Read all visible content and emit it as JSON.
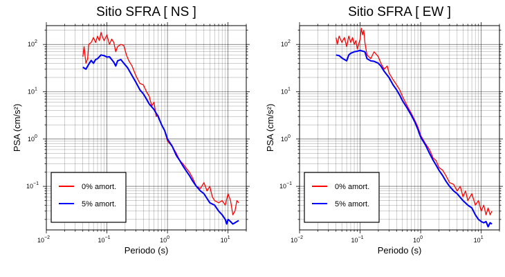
{
  "colors": {
    "undamped": "#ff0000",
    "damped": "#0000ff",
    "grid": "#000000",
    "frame": "#000000"
  },
  "chart_data": [
    {
      "type": "line",
      "title": "Sitio SFRA [ NS ]",
      "xlabel": "Periodo (s)",
      "ylabel": "PSA (cm/s²)",
      "xscale": "log",
      "yscale": "log",
      "xlim": [
        0.01,
        20
      ],
      "ylim": [
        0.012,
        250
      ],
      "grid": true,
      "legend_position": "bottom-left",
      "x_ticks": [
        {
          "value": 0.01,
          "base": "10",
          "exp": "−2"
        },
        {
          "value": 0.1,
          "base": "10",
          "exp": "−1"
        },
        {
          "value": 1,
          "base": "10",
          "exp": "0"
        },
        {
          "value": 10,
          "base": "10",
          "exp": "1"
        }
      ],
      "y_ticks": [
        {
          "value": 0.1,
          "base": "10",
          "exp": "−1"
        },
        {
          "value": 1,
          "base": "10",
          "exp": "0"
        },
        {
          "value": 10,
          "base": "10",
          "exp": "1"
        },
        {
          "value": 100,
          "base": "10",
          "exp": "2"
        }
      ],
      "series": [
        {
          "name": "0% amort.",
          "color": "#ff0000",
          "points": [
            [
              0.04,
              55
            ],
            [
              0.042,
              90
            ],
            [
              0.045,
              40
            ],
            [
              0.048,
              50
            ],
            [
              0.05,
              100
            ],
            [
              0.055,
              110
            ],
            [
              0.06,
              140
            ],
            [
              0.065,
              110
            ],
            [
              0.07,
              150
            ],
            [
              0.075,
              120
            ],
            [
              0.08,
              180
            ],
            [
              0.085,
              140
            ],
            [
              0.09,
              120
            ],
            [
              0.1,
              160
            ],
            [
              0.11,
              100
            ],
            [
              0.12,
              130
            ],
            [
              0.13,
              110
            ],
            [
              0.14,
              70
            ],
            [
              0.15,
              90
            ],
            [
              0.17,
              100
            ],
            [
              0.19,
              95
            ],
            [
              0.21,
              60
            ],
            [
              0.23,
              45
            ],
            [
              0.26,
              35
            ],
            [
              0.3,
              22
            ],
            [
              0.35,
              15
            ],
            [
              0.4,
              14
            ],
            [
              0.45,
              10
            ],
            [
              0.5,
              8
            ],
            [
              0.55,
              5
            ],
            [
              0.6,
              6
            ],
            [
              0.65,
              3
            ],
            [
              0.7,
              3.2
            ],
            [
              0.8,
              2
            ],
            [
              0.9,
              1.5
            ],
            [
              1,
              0.9
            ],
            [
              1.2,
              0.7
            ],
            [
              1.4,
              0.5
            ],
            [
              1.6,
              0.35
            ],
            [
              1.8,
              0.3
            ],
            [
              2,
              0.25
            ],
            [
              2.3,
              0.2
            ],
            [
              2.6,
              0.15
            ],
            [
              3,
              0.1
            ],
            [
              3.5,
              0.09
            ],
            [
              4,
              0.12
            ],
            [
              4.5,
              0.08
            ],
            [
              5,
              0.1
            ],
            [
              5.5,
              0.06
            ],
            [
              6,
              0.05
            ],
            [
              7,
              0.045
            ],
            [
              8,
              0.05
            ],
            [
              9,
              0.04
            ],
            [
              10,
              0.07
            ],
            [
              11,
              0.05
            ],
            [
              12,
              0.025
            ],
            [
              13,
              0.03
            ],
            [
              14,
              0.05
            ],
            [
              15,
              0.045
            ]
          ]
        },
        {
          "name": "5% amort.",
          "color": "#0000ff",
          "points": [
            [
              0.04,
              33
            ],
            [
              0.045,
              30
            ],
            [
              0.05,
              38
            ],
            [
              0.055,
              46
            ],
            [
              0.06,
              40
            ],
            [
              0.065,
              48
            ],
            [
              0.07,
              50
            ],
            [
              0.08,
              60
            ],
            [
              0.09,
              58
            ],
            [
              0.1,
              54
            ],
            [
              0.11,
              55
            ],
            [
              0.12,
              48
            ],
            [
              0.13,
              42
            ],
            [
              0.14,
              35
            ],
            [
              0.15,
              45
            ],
            [
              0.17,
              48
            ],
            [
              0.19,
              40
            ],
            [
              0.22,
              32
            ],
            [
              0.26,
              22
            ],
            [
              0.3,
              16
            ],
            [
              0.35,
              11
            ],
            [
              0.4,
              9
            ],
            [
              0.45,
              7
            ],
            [
              0.5,
              5.5
            ],
            [
              0.6,
              4.2
            ],
            [
              0.7,
              3
            ],
            [
              0.8,
              2
            ],
            [
              0.9,
              1.5
            ],
            [
              1,
              1
            ],
            [
              1.2,
              0.7
            ],
            [
              1.4,
              0.45
            ],
            [
              1.6,
              0.35
            ],
            [
              1.8,
              0.27
            ],
            [
              2,
              0.22
            ],
            [
              2.3,
              0.17
            ],
            [
              2.6,
              0.13
            ],
            [
              3,
              0.1
            ],
            [
              3.5,
              0.08
            ],
            [
              4,
              0.07
            ],
            [
              5,
              0.045
            ],
            [
              6,
              0.04
            ],
            [
              7,
              0.03
            ],
            [
              8,
              0.025
            ],
            [
              9,
              0.02
            ],
            [
              9.5,
              0.016
            ],
            [
              10,
              0.02
            ],
            [
              11,
              0.018
            ],
            [
              12,
              0.016
            ],
            [
              13,
              0.017
            ],
            [
              14,
              0.018
            ],
            [
              15,
              0.019
            ]
          ]
        }
      ]
    },
    {
      "type": "line",
      "title": "Sitio SFRA [ EW ]",
      "xlabel": "Periodo (s)",
      "ylabel": "PSA (cm/s²)",
      "xscale": "log",
      "yscale": "log",
      "xlim": [
        0.01,
        20
      ],
      "ylim": [
        0.012,
        250
      ],
      "grid": true,
      "legend_position": "bottom-left",
      "x_ticks": [
        {
          "value": 0.01,
          "base": "10",
          "exp": "−2"
        },
        {
          "value": 0.1,
          "base": "10",
          "exp": "−1"
        },
        {
          "value": 1,
          "base": "10",
          "exp": "0"
        },
        {
          "value": 10,
          "base": "10",
          "exp": "1"
        }
      ],
      "y_ticks": [
        {
          "value": 0.1,
          "base": "10",
          "exp": "−1"
        },
        {
          "value": 1,
          "base": "10",
          "exp": "0"
        },
        {
          "value": 10,
          "base": "10",
          "exp": "1"
        },
        {
          "value": 100,
          "base": "10",
          "exp": "2"
        }
      ],
      "series": [
        {
          "name": "0% amort.",
          "color": "#ff0000",
          "points": [
            [
              0.04,
              140
            ],
            [
              0.042,
              100
            ],
            [
              0.045,
              150
            ],
            [
              0.05,
              110
            ],
            [
              0.055,
              140
            ],
            [
              0.06,
              90
            ],
            [
              0.065,
              150
            ],
            [
              0.07,
              110
            ],
            [
              0.075,
              140
            ],
            [
              0.08,
              100
            ],
            [
              0.085,
              120
            ],
            [
              0.09,
              80
            ],
            [
              0.1,
              130
            ],
            [
              0.105,
              220
            ],
            [
              0.11,
              160
            ],
            [
              0.115,
              200
            ],
            [
              0.12,
              110
            ],
            [
              0.13,
              60
            ],
            [
              0.15,
              50
            ],
            [
              0.17,
              70
            ],
            [
              0.2,
              55
            ],
            [
              0.22,
              40
            ],
            [
              0.25,
              30
            ],
            [
              0.28,
              35
            ],
            [
              0.3,
              25
            ],
            [
              0.35,
              18
            ],
            [
              0.4,
              14
            ],
            [
              0.45,
              11
            ],
            [
              0.5,
              8
            ],
            [
              0.6,
              5
            ],
            [
              0.7,
              3.5
            ],
            [
              0.8,
              2.5
            ],
            [
              0.9,
              1.8
            ],
            [
              1,
              1.2
            ],
            [
              1.2,
              0.8
            ],
            [
              1.4,
              0.6
            ],
            [
              1.6,
              0.4
            ],
            [
              1.8,
              0.35
            ],
            [
              2,
              0.25
            ],
            [
              2.3,
              0.22
            ],
            [
              2.6,
              0.17
            ],
            [
              3,
              0.12
            ],
            [
              3.5,
              0.11
            ],
            [
              4,
              0.08
            ],
            [
              4.5,
              0.1
            ],
            [
              5,
              0.06
            ],
            [
              5.5,
              0.08
            ],
            [
              6,
              0.05
            ],
            [
              7,
              0.07
            ],
            [
              8,
              0.04
            ],
            [
              9,
              0.05
            ],
            [
              10,
              0.03
            ],
            [
              11,
              0.04
            ],
            [
              12,
              0.025
            ],
            [
              13,
              0.035
            ],
            [
              14,
              0.025
            ],
            [
              15,
              0.03
            ]
          ]
        },
        {
          "name": "5% amort.",
          "color": "#0000ff",
          "points": [
            [
              0.04,
              60
            ],
            [
              0.045,
              58
            ],
            [
              0.05,
              52
            ],
            [
              0.055,
              48
            ],
            [
              0.06,
              45
            ],
            [
              0.065,
              60
            ],
            [
              0.07,
              65
            ],
            [
              0.08,
              70
            ],
            [
              0.09,
              72
            ],
            [
              0.1,
              75
            ],
            [
              0.12,
              70
            ],
            [
              0.13,
              50
            ],
            [
              0.15,
              45
            ],
            [
              0.17,
              44
            ],
            [
              0.2,
              40
            ],
            [
              0.22,
              35
            ],
            [
              0.25,
              27
            ],
            [
              0.3,
              20
            ],
            [
              0.35,
              14
            ],
            [
              0.4,
              11
            ],
            [
              0.45,
              8.5
            ],
            [
              0.5,
              6.5
            ],
            [
              0.6,
              4.5
            ],
            [
              0.7,
              3.2
            ],
            [
              0.8,
              2.3
            ],
            [
              0.9,
              1.6
            ],
            [
              1,
              1.1
            ],
            [
              1.2,
              0.75
            ],
            [
              1.4,
              0.5
            ],
            [
              1.6,
              0.36
            ],
            [
              1.8,
              0.28
            ],
            [
              2,
              0.22
            ],
            [
              2.3,
              0.17
            ],
            [
              2.6,
              0.13
            ],
            [
              3,
              0.1
            ],
            [
              3.5,
              0.08
            ],
            [
              4,
              0.07
            ],
            [
              5,
              0.05
            ],
            [
              6,
              0.04
            ],
            [
              7,
              0.035
            ],
            [
              8,
              0.025
            ],
            [
              9,
              0.02
            ],
            [
              10,
              0.018
            ],
            [
              11,
              0.017
            ],
            [
              12,
              0.018
            ],
            [
              13,
              0.014
            ],
            [
              14,
              0.017
            ],
            [
              15,
              0.016
            ]
          ]
        }
      ]
    }
  ]
}
